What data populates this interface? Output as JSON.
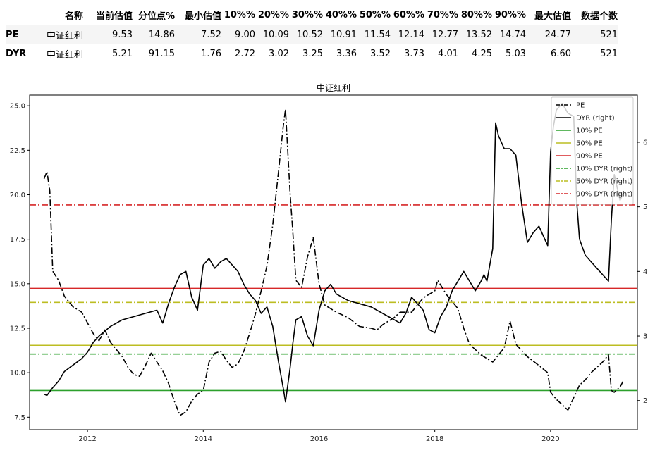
{
  "table": {
    "headers": [
      "名称",
      "当前估值",
      "分位点%",
      "最小估值",
      "10%%",
      "20%%",
      "30%%",
      "40%%",
      "50%%",
      "60%%",
      "70%%",
      "80%%",
      "90%%",
      "最大估值",
      "数据个数"
    ],
    "rows": [
      {
        "key": "PE",
        "cells": [
          "中证红利",
          "9.53",
          "14.86",
          "7.52",
          "9.00",
          "10.09",
          "10.52",
          "10.91",
          "11.54",
          "12.14",
          "12.77",
          "13.52",
          "14.74",
          "24.77",
          "521"
        ]
      },
      {
        "key": "DYR",
        "cells": [
          "中证红利",
          "5.21",
          "91.15",
          "1.76",
          "2.72",
          "3.02",
          "3.25",
          "3.36",
          "3.52",
          "3.73",
          "4.01",
          "4.25",
          "5.03",
          "6.60",
          "521"
        ]
      }
    ]
  },
  "chart_data": {
    "type": "line",
    "title": "中证红利",
    "x_type": "time",
    "xlim": [
      2011.0,
      2021.5
    ],
    "x_ticks": [
      2012,
      2014,
      2016,
      2018,
      2020
    ],
    "ylim_left": [
      6.8,
      25.6
    ],
    "y_ticks_left": [
      "7.5",
      "10.0",
      "12.5",
      "15.0",
      "17.5",
      "20.0",
      "22.5",
      "25.0"
    ],
    "ylim_right": [
      1.55,
      6.73
    ],
    "y_ticks_right": [
      "2",
      "3",
      "4",
      "5",
      "6"
    ],
    "legend_position": "upper right",
    "colors": {
      "pe": "#000000",
      "dyr": "#000000",
      "p10": "#2ca02c",
      "p50": "#bcbd22",
      "p90": "#d62728"
    },
    "series": [
      {
        "name": "PE",
        "axis": "left",
        "style": "dashdot",
        "color": "#000000",
        "points": [
          [
            2011.25,
            20.9
          ],
          [
            2011.3,
            21.3
          ],
          [
            2011.35,
            20.2
          ],
          [
            2011.4,
            15.7
          ],
          [
            2011.5,
            15.2
          ],
          [
            2011.6,
            14.3
          ],
          [
            2011.75,
            13.7
          ],
          [
            2011.9,
            13.4
          ],
          [
            2012.0,
            12.8
          ],
          [
            2012.1,
            12.2
          ],
          [
            2012.2,
            11.8
          ],
          [
            2012.3,
            12.4
          ],
          [
            2012.4,
            11.7
          ],
          [
            2012.5,
            11.3
          ],
          [
            2012.6,
            10.9
          ],
          [
            2012.7,
            10.3
          ],
          [
            2012.8,
            9.9
          ],
          [
            2012.9,
            9.8
          ],
          [
            2013.0,
            10.4
          ],
          [
            2013.1,
            11.1
          ],
          [
            2013.2,
            10.6
          ],
          [
            2013.3,
            10.1
          ],
          [
            2013.4,
            9.4
          ],
          [
            2013.5,
            8.4
          ],
          [
            2013.6,
            7.6
          ],
          [
            2013.7,
            7.8
          ],
          [
            2013.8,
            8.4
          ],
          [
            2013.9,
            8.8
          ],
          [
            2014.0,
            9.0
          ],
          [
            2014.1,
            10.6
          ],
          [
            2014.2,
            11.1
          ],
          [
            2014.3,
            11.2
          ],
          [
            2014.4,
            10.7
          ],
          [
            2014.5,
            10.3
          ],
          [
            2014.6,
            10.5
          ],
          [
            2014.7,
            11.2
          ],
          [
            2014.8,
            12.2
          ],
          [
            2014.9,
            13.3
          ],
          [
            2015.0,
            14.6
          ],
          [
            2015.1,
            16.0
          ],
          [
            2015.2,
            18.3
          ],
          [
            2015.3,
            21.3
          ],
          [
            2015.38,
            23.8
          ],
          [
            2015.42,
            24.8
          ],
          [
            2015.5,
            20.1
          ],
          [
            2015.55,
            17.8
          ],
          [
            2015.6,
            15.2
          ],
          [
            2015.7,
            14.8
          ],
          [
            2015.8,
            16.5
          ],
          [
            2015.9,
            17.6
          ],
          [
            2016.0,
            15.0
          ],
          [
            2016.1,
            13.8
          ],
          [
            2016.2,
            13.6
          ],
          [
            2016.3,
            13.4
          ],
          [
            2016.5,
            13.1
          ],
          [
            2016.7,
            12.6
          ],
          [
            2016.9,
            12.5
          ],
          [
            2017.0,
            12.4
          ],
          [
            2017.1,
            12.7
          ],
          [
            2017.2,
            12.9
          ],
          [
            2017.3,
            13.1
          ],
          [
            2017.4,
            13.4
          ],
          [
            2017.6,
            13.4
          ],
          [
            2017.8,
            14.2
          ],
          [
            2018.0,
            14.6
          ],
          [
            2018.05,
            15.2
          ],
          [
            2018.2,
            14.4
          ],
          [
            2018.4,
            13.6
          ],
          [
            2018.5,
            12.5
          ],
          [
            2018.6,
            11.6
          ],
          [
            2018.8,
            11.0
          ],
          [
            2019.0,
            10.6
          ],
          [
            2019.2,
            11.4
          ],
          [
            2019.3,
            12.9
          ],
          [
            2019.4,
            11.6
          ],
          [
            2019.6,
            10.9
          ],
          [
            2019.8,
            10.4
          ],
          [
            2019.95,
            10.0
          ],
          [
            2020.0,
            8.9
          ],
          [
            2020.1,
            8.5
          ],
          [
            2020.2,
            8.2
          ],
          [
            2020.3,
            7.9
          ],
          [
            2020.4,
            8.6
          ],
          [
            2020.5,
            9.3
          ],
          [
            2020.6,
            9.6
          ],
          [
            2020.7,
            10.0
          ],
          [
            2020.8,
            10.3
          ],
          [
            2020.9,
            10.6
          ],
          [
            2021.0,
            11.0
          ],
          [
            2021.05,
            9.0
          ],
          [
            2021.1,
            8.9
          ],
          [
            2021.2,
            9.2
          ],
          [
            2021.25,
            9.5
          ]
        ]
      },
      {
        "name": "DYR (right)",
        "axis": "right",
        "style": "solid",
        "color": "#000000",
        "points": [
          [
            2011.25,
            2.1
          ],
          [
            2011.3,
            2.08
          ],
          [
            2011.4,
            2.2
          ],
          [
            2011.5,
            2.3
          ],
          [
            2011.6,
            2.45
          ],
          [
            2011.75,
            2.55
          ],
          [
            2011.9,
            2.65
          ],
          [
            2012.0,
            2.75
          ],
          [
            2012.1,
            2.9
          ],
          [
            2012.2,
            3.0
          ],
          [
            2012.4,
            3.15
          ],
          [
            2012.6,
            3.25
          ],
          [
            2012.8,
            3.3
          ],
          [
            2013.0,
            3.35
          ],
          [
            2013.2,
            3.4
          ],
          [
            2013.3,
            3.2
          ],
          [
            2013.4,
            3.5
          ],
          [
            2013.5,
            3.75
          ],
          [
            2013.6,
            3.95
          ],
          [
            2013.7,
            4.0
          ],
          [
            2013.8,
            3.6
          ],
          [
            2013.9,
            3.4
          ],
          [
            2014.0,
            4.1
          ],
          [
            2014.1,
            4.2
          ],
          [
            2014.2,
            4.05
          ],
          [
            2014.3,
            4.15
          ],
          [
            2014.4,
            4.2
          ],
          [
            2014.5,
            4.1
          ],
          [
            2014.6,
            4.0
          ],
          [
            2014.7,
            3.8
          ],
          [
            2014.8,
            3.65
          ],
          [
            2014.9,
            3.55
          ],
          [
            2015.0,
            3.35
          ],
          [
            2015.1,
            3.45
          ],
          [
            2015.2,
            3.15
          ],
          [
            2015.3,
            2.6
          ],
          [
            2015.38,
            2.2
          ],
          [
            2015.42,
            1.98
          ],
          [
            2015.5,
            2.5
          ],
          [
            2015.55,
            2.9
          ],
          [
            2015.6,
            3.25
          ],
          [
            2015.7,
            3.3
          ],
          [
            2015.8,
            3.0
          ],
          [
            2015.9,
            2.85
          ],
          [
            2016.0,
            3.4
          ],
          [
            2016.1,
            3.7
          ],
          [
            2016.2,
            3.8
          ],
          [
            2016.3,
            3.65
          ],
          [
            2016.5,
            3.55
          ],
          [
            2016.7,
            3.5
          ],
          [
            2016.9,
            3.45
          ],
          [
            2017.0,
            3.4
          ],
          [
            2017.2,
            3.3
          ],
          [
            2017.3,
            3.25
          ],
          [
            2017.4,
            3.2
          ],
          [
            2017.5,
            3.35
          ],
          [
            2017.6,
            3.6
          ],
          [
            2017.8,
            3.4
          ],
          [
            2017.9,
            3.1
          ],
          [
            2018.0,
            3.05
          ],
          [
            2018.1,
            3.3
          ],
          [
            2018.2,
            3.45
          ],
          [
            2018.3,
            3.7
          ],
          [
            2018.4,
            3.85
          ],
          [
            2018.5,
            4.0
          ],
          [
            2018.6,
            3.85
          ],
          [
            2018.7,
            3.7
          ],
          [
            2018.8,
            3.85
          ],
          [
            2018.85,
            3.95
          ],
          [
            2018.9,
            3.85
          ],
          [
            2019.0,
            4.35
          ],
          [
            2019.05,
            6.3
          ],
          [
            2019.1,
            6.1
          ],
          [
            2019.2,
            5.9
          ],
          [
            2019.3,
            5.9
          ],
          [
            2019.4,
            5.8
          ],
          [
            2019.5,
            5.05
          ],
          [
            2019.6,
            4.45
          ],
          [
            2019.7,
            4.6
          ],
          [
            2019.8,
            4.7
          ],
          [
            2019.9,
            4.5
          ],
          [
            2019.95,
            4.4
          ],
          [
            2020.0,
            5.85
          ],
          [
            2020.05,
            6.25
          ],
          [
            2020.1,
            6.5
          ],
          [
            2020.2,
            6.6
          ],
          [
            2020.3,
            6.45
          ],
          [
            2020.4,
            6.4
          ],
          [
            2020.45,
            5.1
          ],
          [
            2020.5,
            4.5
          ],
          [
            2020.6,
            4.25
          ],
          [
            2020.7,
            4.15
          ],
          [
            2020.8,
            4.05
          ],
          [
            2020.9,
            3.95
          ],
          [
            2021.0,
            3.85
          ],
          [
            2021.05,
            4.8
          ],
          [
            2021.1,
            5.5
          ],
          [
            2021.15,
            5.3
          ],
          [
            2021.2,
            5.1
          ],
          [
            2021.25,
            5.2
          ]
        ]
      }
    ],
    "reference_lines": [
      {
        "name": "10% PE",
        "axis": "left",
        "value": 9.0,
        "style": "solid",
        "color": "#2ca02c"
      },
      {
        "name": "50% PE",
        "axis": "left",
        "value": 11.54,
        "style": "solid",
        "color": "#bcbd22"
      },
      {
        "name": "90% PE",
        "axis": "left",
        "value": 14.74,
        "style": "solid",
        "color": "#d62728"
      },
      {
        "name": "10% DYR (right)",
        "axis": "right",
        "value": 2.72,
        "style": "dashdot",
        "color": "#2ca02c"
      },
      {
        "name": "50% DYR (right)",
        "axis": "right",
        "value": 3.52,
        "style": "dashdot",
        "color": "#bcbd22"
      },
      {
        "name": "90% DYR (right)",
        "axis": "right",
        "value": 5.03,
        "style": "dashdot",
        "color": "#d62728"
      }
    ]
  }
}
